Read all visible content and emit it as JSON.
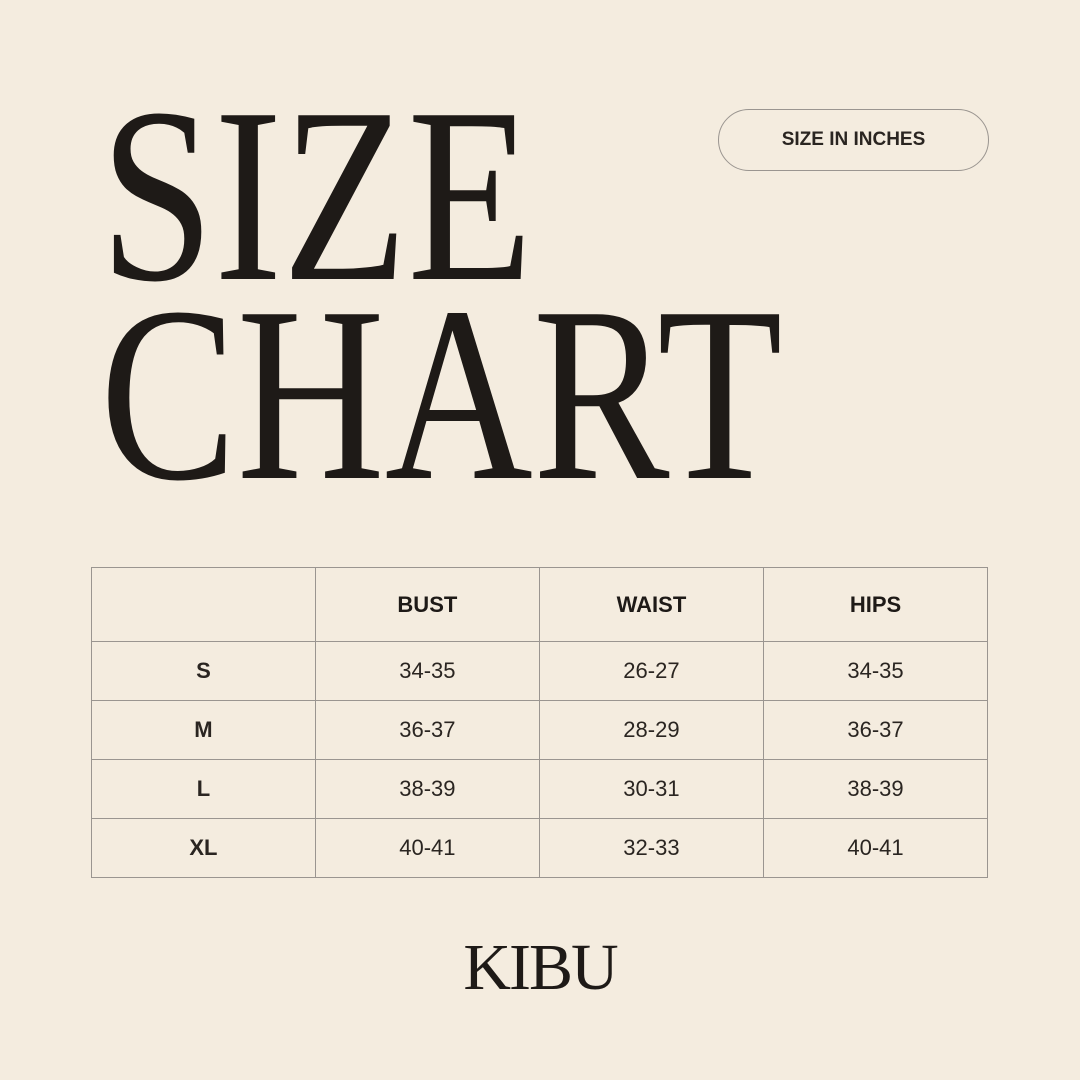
{
  "title": {
    "line1": "SIZE",
    "line2": "CHART"
  },
  "unit_badge": "SIZE IN INCHES",
  "table": {
    "headers": [
      "",
      "BUST",
      "WAIST",
      "HIPS"
    ],
    "rows": [
      [
        "S",
        "34-35",
        "26-27",
        "34-35"
      ],
      [
        "M",
        "36-37",
        "28-29",
        "36-37"
      ],
      [
        "L",
        "38-39",
        "30-31",
        "38-39"
      ],
      [
        "XL",
        "40-41",
        "32-33",
        "40-41"
      ]
    ]
  },
  "brand": "KIBU",
  "colors": {
    "background": "#f4ecdf",
    "text": "#1e1a17",
    "border": "#9a9590"
  }
}
